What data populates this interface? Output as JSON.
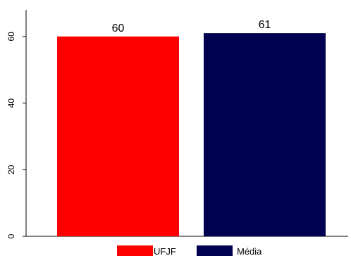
{
  "chart_data": {
    "type": "bar",
    "categories": [
      "UFJF",
      "Média"
    ],
    "values": [
      60,
      61
    ],
    "data_labels": [
      "60",
      "61"
    ],
    "colors": [
      "#ff0000",
      "#000050"
    ],
    "ylim": [
      0,
      68
    ],
    "yticks": [
      0,
      20,
      40,
      60
    ],
    "ytick_labels": [
      "0",
      "20",
      "40",
      "60"
    ],
    "title": "",
    "xlabel": "",
    "ylabel": "",
    "grid": false,
    "legend_position": "bottom",
    "legend": [
      {
        "label": "UFJF",
        "color": "#ff0000"
      },
      {
        "label": "Média",
        "color": "#000050"
      }
    ]
  }
}
